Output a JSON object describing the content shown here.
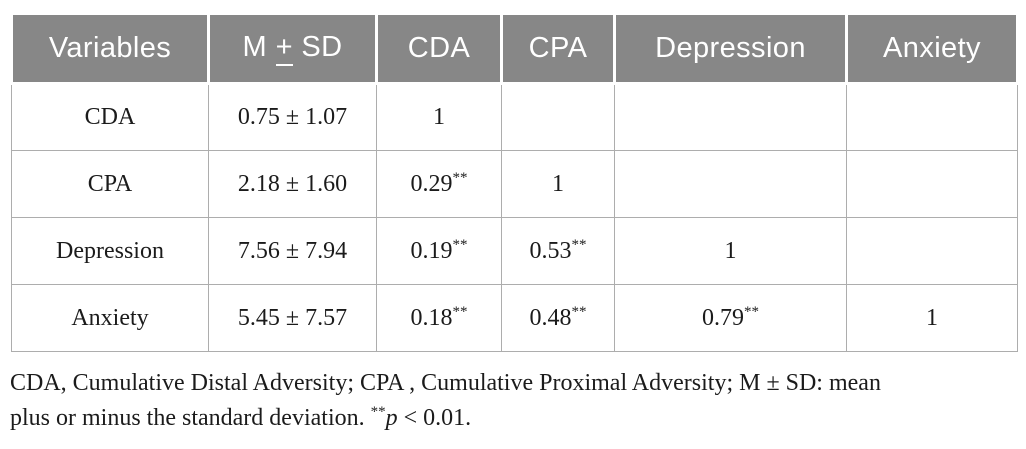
{
  "table": {
    "headers": [
      "Variables",
      "M ± SD",
      "CDA",
      "CPA",
      "Depression",
      "Anxiety"
    ],
    "rows": [
      {
        "cells": [
          "CDA",
          "0.75 ± 1.07",
          "1",
          "",
          "",
          ""
        ]
      },
      {
        "cells": [
          "CPA",
          "2.18 ± 1.60",
          "0.29**",
          "1",
          "",
          ""
        ]
      },
      {
        "cells": [
          "Depression",
          "7.56 ± 7.94",
          "0.19**",
          "0.53**",
          "1",
          ""
        ]
      },
      {
        "cells": [
          "Anxiety",
          "5.45 ± 7.57",
          "0.18**",
          "0.48**",
          "0.79**",
          "1"
        ]
      }
    ]
  },
  "footnote": {
    "line1": "CDA, Cumulative Distal Adversity; CPA , Cumulative Proximal Adversity; M ± SD: mean",
    "line2_prefix": "plus or minus the standard deviation. ",
    "stars": "**",
    "p_symbol": "p",
    "p_rest": " < 0.01."
  },
  "colors": {
    "header_bg": "#878787",
    "header_text": "#ffffff",
    "body_text": "#1b1b1b",
    "border": "#adadad",
    "page_bg": "#ffffff"
  }
}
